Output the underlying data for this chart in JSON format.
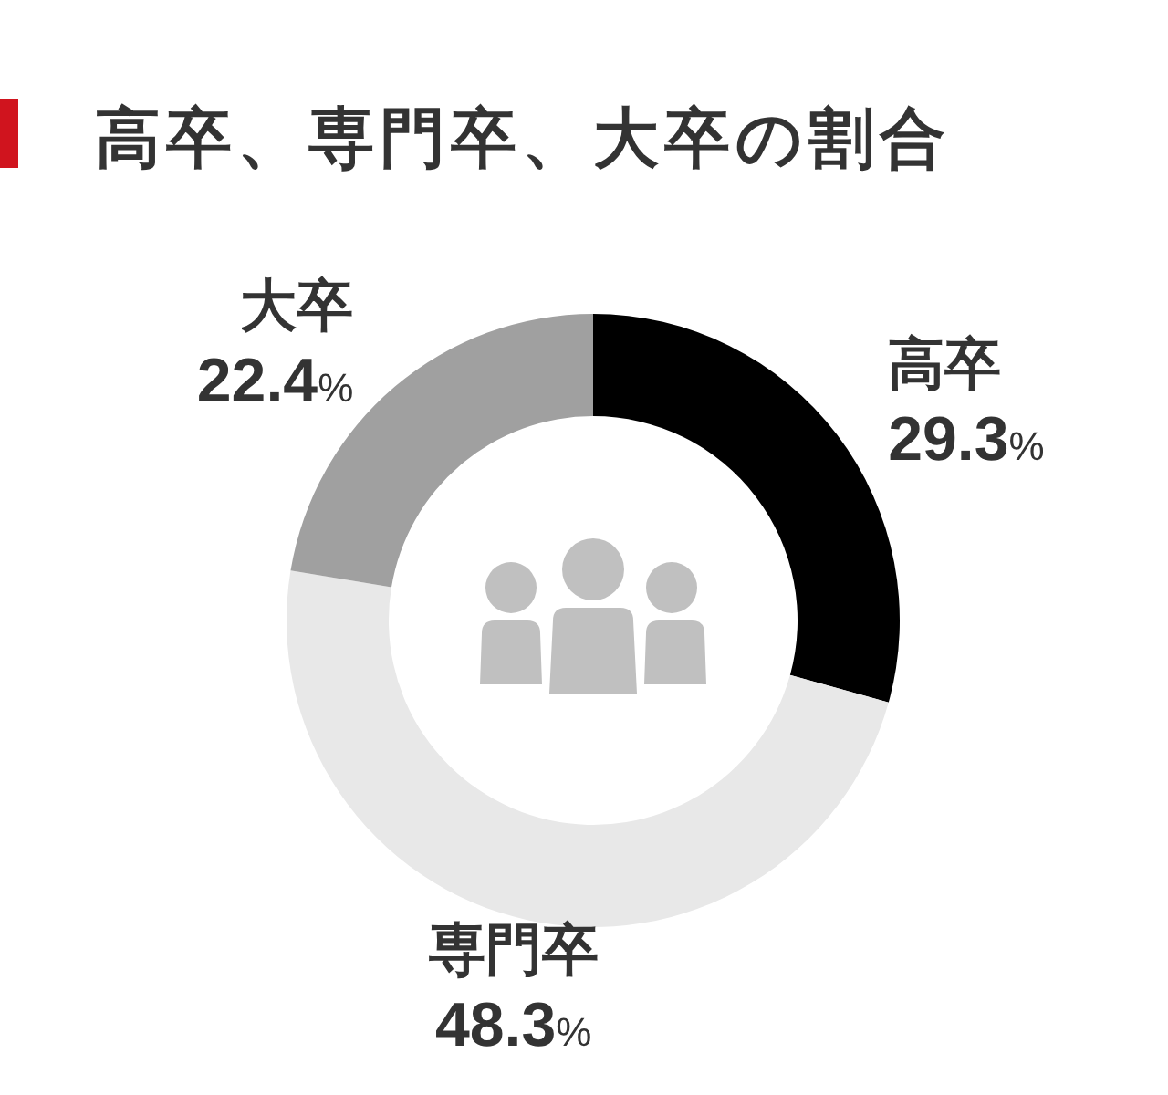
{
  "chart_data": {
    "type": "donut",
    "title": "高卒、専門卒、大卒の割合",
    "categories": [
      "高卒",
      "専門卒",
      "大卒"
    ],
    "values": [
      29.3,
      48.3,
      22.4
    ],
    "colors": [
      "#000000",
      "#e8e8e8",
      "#a0a0a0"
    ],
    "value_labels": [
      "29.3%",
      "48.3%",
      "22.4%"
    ]
  }
}
